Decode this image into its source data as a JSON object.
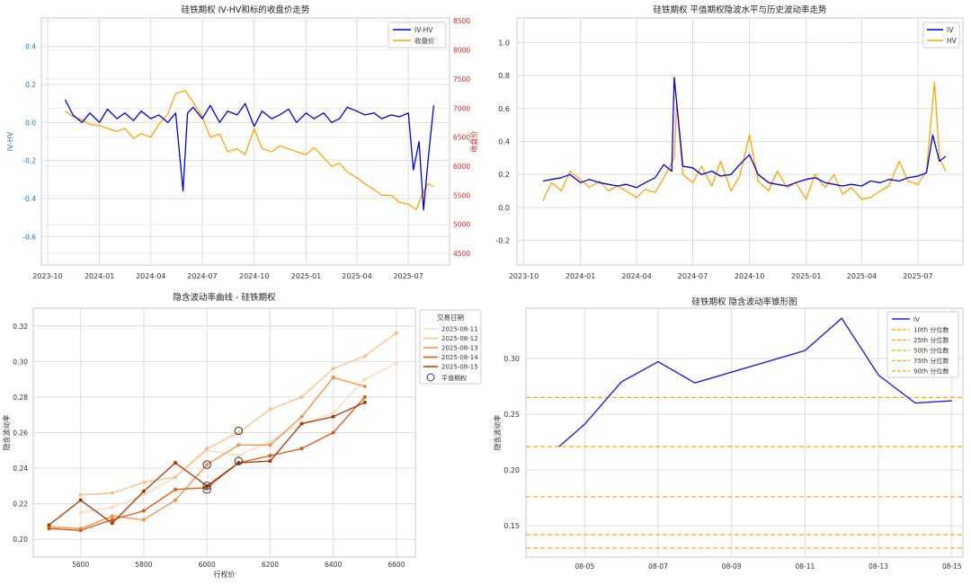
{
  "chart_data": [
    {
      "id": "iv_hv_price",
      "type": "line",
      "title": "硅铁期权 IV-HV和标的收盘价走势",
      "ylabel": "IV-HV",
      "ylabel_right": "收盘价",
      "x_ticks": [
        "2023-10",
        "2024-01",
        "2024-04",
        "2024-07",
        "2024-10",
        "2025-01",
        "2025-04",
        "2025-07"
      ],
      "y_ticks": [
        "0.4",
        "0.2",
        "0.0",
        "-0.2",
        "-0.4",
        "-0.6"
      ],
      "y_ticks_right": [
        "8500",
        "8000",
        "7500",
        "7000",
        "6500",
        "6000",
        "5500",
        "5000",
        "4500"
      ],
      "ylim": [
        -0.75,
        0.55
      ],
      "ylim_right": [
        4300,
        8550
      ],
      "legend_position": "top-right",
      "colors": {
        "iv_hv": "#0000dd",
        "price": "#ffa500",
        "right_axis": "#d62728",
        "left_axis": "#1f77b4"
      },
      "series": [
        {
          "name": "IV-HV",
          "axis": "left",
          "x": [
            "2023-11-01",
            "2023-11-15",
            "2023-12-01",
            "2023-12-15",
            "2024-01-01",
            "2024-01-15",
            "2024-02-01",
            "2024-02-15",
            "2024-03-01",
            "2024-03-15",
            "2024-04-01",
            "2024-04-15",
            "2024-05-01",
            "2024-05-15",
            "2024-05-28",
            "2024-06-05",
            "2024-06-15",
            "2024-07-01",
            "2024-07-15",
            "2024-08-01",
            "2024-08-15",
            "2024-09-01",
            "2024-09-15",
            "2024-10-01",
            "2024-10-15",
            "2024-11-01",
            "2024-11-15",
            "2024-12-01",
            "2024-12-15",
            "2025-01-01",
            "2025-01-15",
            "2025-02-01",
            "2025-02-15",
            "2025-03-01",
            "2025-03-15",
            "2025-04-01",
            "2025-04-15",
            "2025-05-01",
            "2025-05-15",
            "2025-06-01",
            "2025-06-15",
            "2025-07-01",
            "2025-07-10",
            "2025-07-20",
            "2025-07-28",
            "2025-08-05",
            "2025-08-15"
          ],
          "values": [
            0.12,
            0.04,
            0.0,
            0.05,
            0.0,
            0.07,
            0.02,
            0.05,
            0.01,
            0.06,
            0.02,
            0.04,
            0.0,
            0.05,
            -0.36,
            0.05,
            0.08,
            0.02,
            0.09,
            0.0,
            0.06,
            0.04,
            0.1,
            -0.02,
            0.06,
            0.02,
            0.04,
            0.07,
            0.0,
            0.05,
            0.02,
            0.05,
            0.0,
            0.02,
            0.08,
            0.06,
            0.04,
            0.05,
            0.02,
            0.04,
            0.03,
            0.05,
            -0.25,
            -0.1,
            -0.46,
            -0.2,
            0.09
          ]
        },
        {
          "name": "收盘价",
          "axis": "right",
          "x": [
            "2023-11-01",
            "2023-11-15",
            "2023-12-01",
            "2023-12-15",
            "2024-01-01",
            "2024-01-15",
            "2024-02-01",
            "2024-02-15",
            "2024-03-01",
            "2024-03-15",
            "2024-04-01",
            "2024-04-15",
            "2024-05-01",
            "2024-05-15",
            "2024-06-01",
            "2024-06-15",
            "2024-07-01",
            "2024-07-15",
            "2024-08-01",
            "2024-08-15",
            "2024-09-01",
            "2024-09-15",
            "2024-10-01",
            "2024-10-15",
            "2024-11-01",
            "2024-11-15",
            "2024-12-01",
            "2024-12-15",
            "2025-01-01",
            "2025-01-15",
            "2025-02-01",
            "2025-02-15",
            "2025-03-01",
            "2025-03-15",
            "2025-04-01",
            "2025-04-15",
            "2025-05-01",
            "2025-05-15",
            "2025-06-01",
            "2025-06-15",
            "2025-07-01",
            "2025-07-15",
            "2025-07-25",
            "2025-08-05",
            "2025-08-15"
          ],
          "values": [
            6950,
            6850,
            6800,
            6720,
            6700,
            6650,
            6600,
            6650,
            6480,
            6560,
            6500,
            6720,
            6900,
            7250,
            7300,
            7100,
            6850,
            6500,
            6550,
            6250,
            6300,
            6200,
            6650,
            6300,
            6250,
            6350,
            6300,
            6250,
            6200,
            6320,
            6150,
            6000,
            6050,
            5900,
            5800,
            5700,
            5600,
            5500,
            5500,
            5380,
            5350,
            5250,
            5500,
            5700,
            5650
          ]
        }
      ]
    },
    {
      "id": "iv_vs_hv",
      "type": "line",
      "title": "硅铁期权 平值期权隐波水平与历史波动率走势",
      "x_ticks": [
        "2023-10",
        "2024-01",
        "2024-04",
        "2024-07",
        "2024-10",
        "2025-01",
        "2025-04",
        "2025-07"
      ],
      "y_ticks": [
        "1.0",
        "0.8",
        "0.6",
        "0.4",
        "0.2",
        "0.0",
        "-0.2"
      ],
      "ylim": [
        -0.35,
        1.15
      ],
      "legend_position": "top-right",
      "colors": {
        "iv": "#0000dd",
        "hv": "#ffa500"
      },
      "series": [
        {
          "name": "IV",
          "x": [
            "2023-11-01",
            "2023-11-15",
            "2023-12-01",
            "2023-12-15",
            "2024-01-01",
            "2024-01-15",
            "2024-02-01",
            "2024-02-15",
            "2024-03-01",
            "2024-03-15",
            "2024-04-01",
            "2024-04-15",
            "2024-05-01",
            "2024-05-15",
            "2024-05-28",
            "2024-06-01",
            "2024-06-15",
            "2024-07-01",
            "2024-07-15",
            "2024-08-01",
            "2024-08-15",
            "2024-09-01",
            "2024-09-15",
            "2024-10-01",
            "2024-10-15",
            "2024-11-01",
            "2024-11-15",
            "2024-12-01",
            "2024-12-15",
            "2025-01-01",
            "2025-01-15",
            "2025-02-01",
            "2025-02-15",
            "2025-03-01",
            "2025-03-15",
            "2025-04-01",
            "2025-04-15",
            "2025-05-01",
            "2025-05-15",
            "2025-06-01",
            "2025-06-15",
            "2025-07-01",
            "2025-07-15",
            "2025-07-25",
            "2025-08-05",
            "2025-08-15"
          ],
          "values": [
            0.16,
            0.17,
            0.18,
            0.2,
            0.15,
            0.17,
            0.15,
            0.14,
            0.13,
            0.14,
            0.12,
            0.15,
            0.18,
            0.26,
            0.22,
            0.79,
            0.25,
            0.24,
            0.2,
            0.22,
            0.19,
            0.2,
            0.26,
            0.32,
            0.2,
            0.15,
            0.14,
            0.13,
            0.15,
            0.17,
            0.18,
            0.15,
            0.14,
            0.13,
            0.14,
            0.13,
            0.16,
            0.15,
            0.17,
            0.16,
            0.18,
            0.19,
            0.21,
            0.44,
            0.28,
            0.31
          ]
        },
        {
          "name": "HV",
          "x": [
            "2023-11-01",
            "2023-11-15",
            "2023-12-01",
            "2023-12-15",
            "2024-01-01",
            "2024-01-15",
            "2024-02-01",
            "2024-02-15",
            "2024-03-01",
            "2024-03-15",
            "2024-04-01",
            "2024-04-15",
            "2024-05-01",
            "2024-05-15",
            "2024-06-01",
            "2024-06-05",
            "2024-06-15",
            "2024-07-01",
            "2024-07-15",
            "2024-08-01",
            "2024-08-15",
            "2024-09-01",
            "2024-09-15",
            "2024-10-01",
            "2024-10-15",
            "2024-11-01",
            "2024-11-15",
            "2024-12-01",
            "2024-12-15",
            "2025-01-01",
            "2025-01-15",
            "2025-02-01",
            "2025-02-15",
            "2025-03-01",
            "2025-03-15",
            "2025-04-01",
            "2025-04-15",
            "2025-05-01",
            "2025-05-15",
            "2025-06-01",
            "2025-06-15",
            "2025-07-01",
            "2025-07-15",
            "2025-07-28",
            "2025-08-05",
            "2025-08-15"
          ],
          "values": [
            0.04,
            0.15,
            0.1,
            0.22,
            0.17,
            0.12,
            0.16,
            0.1,
            0.13,
            0.1,
            0.06,
            0.11,
            0.09,
            0.18,
            0.3,
            0.64,
            0.2,
            0.15,
            0.25,
            0.13,
            0.28,
            0.1,
            0.19,
            0.44,
            0.16,
            0.1,
            0.22,
            0.12,
            0.15,
            0.05,
            0.2,
            0.12,
            0.2,
            0.08,
            0.12,
            0.05,
            0.06,
            0.1,
            0.13,
            0.28,
            0.16,
            0.14,
            0.22,
            0.76,
            0.3,
            0.22
          ]
        }
      ]
    },
    {
      "id": "iv_smile",
      "type": "line",
      "title": "隐含波动率曲线 - 硅铁期权",
      "xlabel": "行权价",
      "ylabel": "隐含波动率",
      "x_ticks": [
        "5600",
        "5800",
        "6000",
        "6200",
        "6400",
        "6600"
      ],
      "y_ticks": [
        "0.32",
        "0.30",
        "0.28",
        "0.26",
        "0.24",
        "0.22",
        "0.20"
      ],
      "xlim": [
        5450,
        6660
      ],
      "ylim": [
        0.19,
        0.33
      ],
      "legend_title": "交易日期",
      "legend_position": "outside-right",
      "atm_label": "平值期权",
      "series": [
        {
          "name": "2025-08-11",
          "color": "#fdd9b4",
          "x": [
            5600,
            5700,
            5800,
            5900,
            6000,
            6100,
            6200,
            6300,
            6400,
            6500,
            6600
          ],
          "values": [
            0.215,
            0.218,
            0.225,
            0.235,
            0.25,
            0.247,
            0.255,
            0.265,
            0.271,
            0.29,
            0.299
          ]
        },
        {
          "name": "2025-08-12",
          "color": "#fdbe85",
          "x": [
            5600,
            5700,
            5800,
            5900,
            6000,
            6100,
            6200,
            6300,
            6400,
            6500,
            6600
          ],
          "values": [
            0.225,
            0.226,
            0.232,
            0.235,
            0.251,
            0.26,
            0.273,
            0.28,
            0.296,
            0.303,
            0.316
          ]
        },
        {
          "name": "2025-08-13",
          "color": "#fd8d3c",
          "x": [
            5500,
            5600,
            5700,
            5800,
            5900,
            6000,
            6100,
            6200,
            6300,
            6400,
            6500
          ],
          "values": [
            0.207,
            0.206,
            0.213,
            0.211,
            0.222,
            0.242,
            0.253,
            0.253,
            0.269,
            0.291,
            0.286
          ]
        },
        {
          "name": "2025-08-14",
          "color": "#e6550d",
          "x": [
            5500,
            5600,
            5700,
            5800,
            5900,
            6000,
            6100,
            6200,
            6300,
            6400,
            6500
          ],
          "values": [
            0.206,
            0.205,
            0.211,
            0.216,
            0.228,
            0.229,
            0.243,
            0.247,
            0.251,
            0.26,
            0.28
          ]
        },
        {
          "name": "2025-08-15",
          "color": "#a63603",
          "x": [
            5500,
            5600,
            5700,
            5800,
            5900,
            6000,
            6100,
            6200,
            6300,
            6400,
            6500
          ],
          "values": [
            0.208,
            0.222,
            0.209,
            0.227,
            0.243,
            0.23,
            0.243,
            0.244,
            0.265,
            0.269,
            0.277
          ]
        }
      ],
      "atm_points": [
        {
          "x": 6000,
          "y": 0.242
        },
        {
          "x": 6000,
          "y": 0.23
        },
        {
          "x": 6000,
          "y": 0.228
        },
        {
          "x": 6100,
          "y": 0.261
        },
        {
          "x": 6100,
          "y": 0.244
        }
      ]
    },
    {
      "id": "iv_cone",
      "type": "line",
      "title": "硅铁期权 隐含波动率锥形图",
      "ylabel": "隐含波动率",
      "x_ticks": [
        "08-05",
        "08-07",
        "08-09",
        "08-11",
        "08-13",
        "08-15"
      ],
      "y_ticks": [
        "0.30",
        "0.25",
        "0.20",
        "0.15"
      ],
      "xlim": [
        3.4,
        15.3
      ],
      "ylim": [
        0.122,
        0.345
      ],
      "legend_position": "top-right",
      "series": [
        {
          "name": "IV",
          "color": "#2222dd",
          "x": [
            4.3,
            5,
            6,
            7,
            8,
            11,
            12,
            13,
            14,
            15
          ],
          "values": [
            0.221,
            0.241,
            0.279,
            0.297,
            0.278,
            0.307,
            0.336,
            0.285,
            0.26,
            0.262
          ]
        }
      ],
      "percentiles": [
        {
          "name": "10th 分位数",
          "value": 0.13,
          "color": "#ffa500"
        },
        {
          "name": "25th 分位数",
          "value": 0.142,
          "color": "#ffa500"
        },
        {
          "name": "50th 分位数",
          "value": 0.176,
          "color": "#ffa500"
        },
        {
          "name": "75th 分位数",
          "value": 0.221,
          "color": "#ffa500"
        },
        {
          "name": "90th 分位数",
          "value": 0.265,
          "color": "#ffa500"
        }
      ]
    }
  ]
}
